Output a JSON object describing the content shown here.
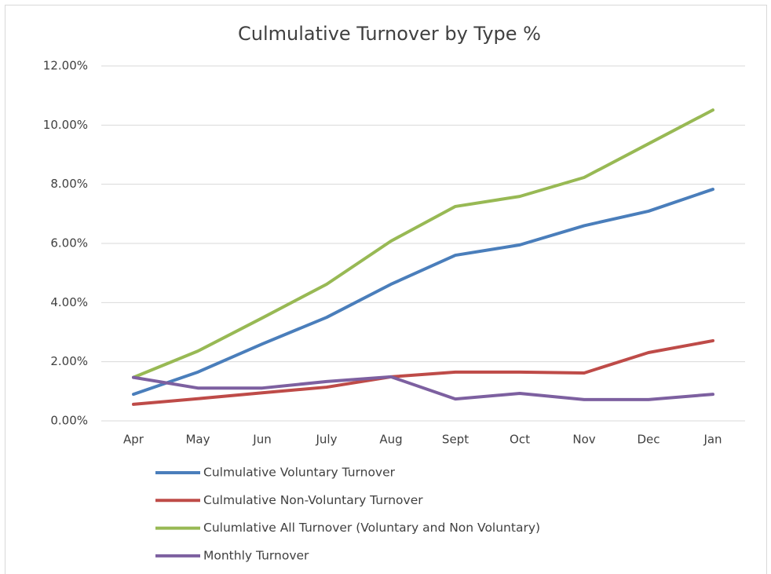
{
  "chart_data": {
    "type": "line",
    "title": "Culmulative Turnover by Type %",
    "categories": [
      "Apr",
      "May",
      "Jun",
      "July",
      "Aug",
      "Sept",
      "Oct",
      "Nov",
      "Dec",
      "Jan"
    ],
    "series": [
      {
        "name": "Culmulative Voluntary Turnover",
        "color": "#4a7ebb",
        "values": [
          0.9,
          1.65,
          2.6,
          3.5,
          4.62,
          5.6,
          5.95,
          6.6,
          7.09,
          7.83
        ]
      },
      {
        "name": "Culmulative Non-Voluntary Turnover",
        "color": "#be4b48",
        "values": [
          0.56,
          0.75,
          0.95,
          1.14,
          1.49,
          1.65,
          1.65,
          1.62,
          2.31,
          2.71
        ]
      },
      {
        "name": "Culumlative All Turnover (Voluntary and Non Voluntary)",
        "color": "#98b954",
        "values": [
          1.47,
          2.36,
          3.48,
          4.62,
          6.08,
          7.25,
          7.59,
          8.23,
          9.37,
          10.51
        ]
      },
      {
        "name": "Monthly Turnover",
        "color": "#7d60a0",
        "values": [
          1.47,
          1.11,
          1.11,
          1.33,
          1.49,
          0.74,
          0.93,
          0.72,
          0.72,
          0.9
        ]
      }
    ],
    "ylim": [
      0,
      12
    ],
    "yticks": [
      {
        "value": 0,
        "label": "0.00%"
      },
      {
        "value": 2,
        "label": "2.00%"
      },
      {
        "value": 4,
        "label": "4.00%"
      },
      {
        "value": 6,
        "label": "6.00%"
      },
      {
        "value": 8,
        "label": "8.00%"
      },
      {
        "value": 10,
        "label": "10.00%"
      },
      {
        "value": 12,
        "label": "12.00%"
      }
    ],
    "grid": true,
    "legend": "bottom"
  }
}
